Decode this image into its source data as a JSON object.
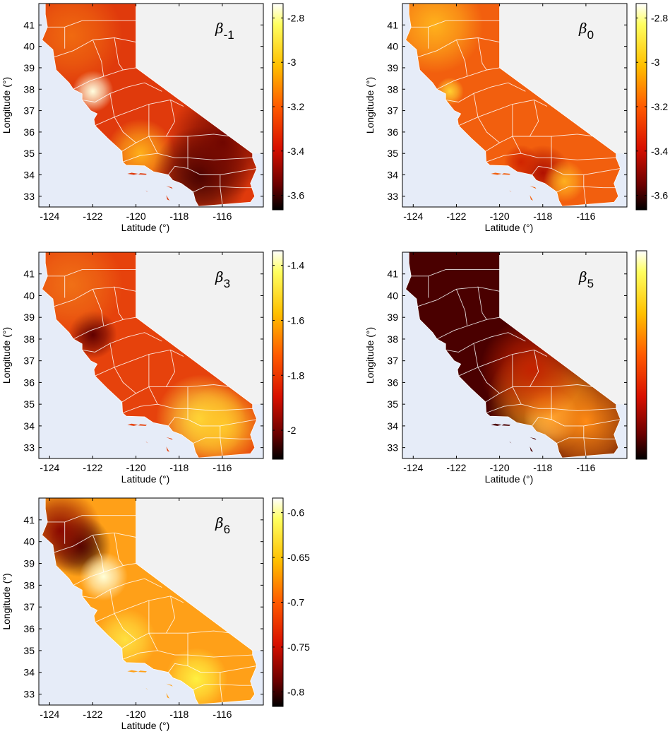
{
  "figure": {
    "x_axis_label": "Latitude (°)",
    "y_axis_label": "Longitude (°)",
    "x_ticks": [
      -124,
      -122,
      -120,
      -118,
      -116
    ],
    "y_ticks": [
      33,
      34,
      35,
      36,
      37,
      38,
      39,
      40,
      41
    ],
    "x_range": [
      -124.5,
      -114.1
    ],
    "y_range": [
      32.5,
      42.0
    ],
    "colormap": "hot",
    "land_background": "#eef0f8",
    "ocean_background": "#e6ecf8",
    "outside_state": "#f2f2f2",
    "county_lines": "#ffffff"
  },
  "panels": [
    {
      "symbol": "β",
      "subscript": "-1",
      "colorbar": {
        "ticks": [
          "-2.8",
          "-3",
          "-3.2",
          "-3.4",
          "-3.6"
        ]
      },
      "base_color": "#e03a0c",
      "hotspots": [
        {
          "lon": -122.0,
          "lat": 37.9,
          "color": "#ffffe0",
          "r": 0.6
        },
        {
          "lon": -119.8,
          "lat": 35.0,
          "color": "#ffb01a",
          "r": 1.0
        },
        {
          "lon": -117.0,
          "lat": 34.0,
          "color": "#3a0000",
          "r": 1.4
        },
        {
          "lon": -116.0,
          "lat": 35.5,
          "color": "#700600",
          "r": 1.6
        },
        {
          "lon": -123.0,
          "lat": 40.5,
          "color": "#f06a10",
          "r": 1.5
        }
      ]
    },
    {
      "symbol": "β",
      "subscript": "0",
      "colorbar": {
        "ticks": [
          "-2.8",
          "-3",
          "-3.2",
          "-3.4",
          "-3.6"
        ]
      },
      "base_color": "#f25f0e",
      "hotspots": [
        {
          "lon": -123.0,
          "lat": 41.0,
          "color": "#ffb21c",
          "r": 1.4
        },
        {
          "lon": -122.3,
          "lat": 37.9,
          "color": "#ffd030",
          "r": 0.4
        },
        {
          "lon": -118.0,
          "lat": 34.1,
          "color": "#b01000",
          "r": 0.8
        },
        {
          "lon": -117.0,
          "lat": 33.7,
          "color": "#ffb020",
          "r": 0.6
        },
        {
          "lon": -119.0,
          "lat": 34.6,
          "color": "#d02400",
          "r": 0.5
        }
      ]
    },
    {
      "symbol": "β",
      "subscript": "3",
      "colorbar": {
        "ticks": [
          "-1.4",
          "-1.6",
          "-1.8",
          "-2"
        ]
      },
      "base_color": "#e6420c",
      "hotspots": [
        {
          "lon": -122.0,
          "lat": 38.2,
          "color": "#600000",
          "r": 0.7
        },
        {
          "lon": -117.0,
          "lat": 34.3,
          "color": "#ffe040",
          "r": 1.3
        },
        {
          "lon": -116.0,
          "lat": 34.0,
          "color": "#ffc82a",
          "r": 1.2
        },
        {
          "lon": -123.0,
          "lat": 40.5,
          "color": "#f07016",
          "r": 1.5
        }
      ]
    },
    {
      "symbol": "β",
      "subscript": "5",
      "colorbar": {
        "ticks": []
      },
      "base_color": "#4a0000",
      "hotspots": [
        {
          "lon": -117.6,
          "lat": 34.4,
          "color": "#ffffd0",
          "r": 0.8
        },
        {
          "lon": -118.0,
          "lat": 35.2,
          "color": "#ffa81a",
          "r": 1.6
        },
        {
          "lon": -116.0,
          "lat": 34.2,
          "color": "#ff8a14",
          "r": 1.8
        },
        {
          "lon": -118.5,
          "lat": 36.6,
          "color": "#c42200",
          "r": 1.5
        }
      ]
    },
    {
      "symbol": "β",
      "subscript": "6",
      "colorbar": {
        "ticks": [
          "-0.6",
          "-0.65",
          "-0.7",
          "-0.75",
          "-0.8"
        ]
      },
      "base_color": "#ffa018",
      "hotspots": [
        {
          "lon": -122.6,
          "lat": 39.8,
          "color": "#2a0000",
          "r": 0.9
        },
        {
          "lon": -123.5,
          "lat": 40.5,
          "color": "#8a0800",
          "r": 1.2
        },
        {
          "lon": -121.5,
          "lat": 38.4,
          "color": "#ffffd8",
          "r": 0.7
        },
        {
          "lon": -117.2,
          "lat": 33.7,
          "color": "#fff040",
          "r": 0.9
        },
        {
          "lon": -120.5,
          "lat": 35.5,
          "color": "#ffe040",
          "r": 0.9
        }
      ]
    }
  ]
}
